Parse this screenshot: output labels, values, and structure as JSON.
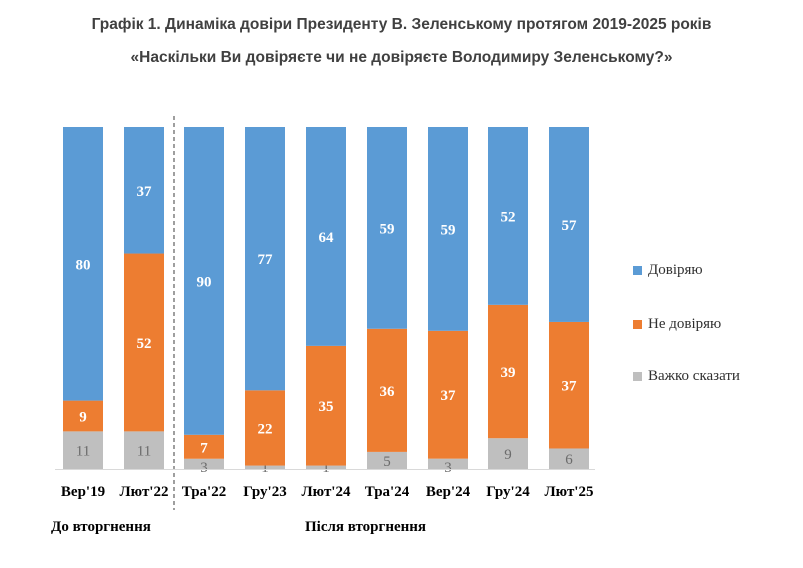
{
  "title_line1": "Графік 1. Динаміка довіри Президенту В. Зеленському протягом 2019-2025 років",
  "title_line2": "«Наскільки Ви довіряєте чи не довіряєте Володимиру Зеленському?»",
  "groups": {
    "before": "До вторгнення",
    "after": "Після вторгнення"
  },
  "colors": {
    "trust": "#5b9bd5",
    "distrust": "#ed7d31",
    "hard": "#bfbfbf"
  },
  "chart_data": {
    "type": "bar",
    "stacked": true,
    "percent_stacked": true,
    "categories": [
      "Вер'19",
      "Лют'22",
      "Тра'22",
      "Гру'23",
      "Лют'24",
      "Тра'24",
      "Вер'24",
      "Гру'24",
      "Лют'25"
    ],
    "series": [
      {
        "name": "Довіряю",
        "values": [
          80,
          37,
          90,
          77,
          64,
          59,
          59,
          52,
          57
        ]
      },
      {
        "name": "Не довіряю",
        "values": [
          9,
          52,
          7,
          22,
          35,
          36,
          37,
          39,
          37
        ]
      },
      {
        "name": "Важко сказати",
        "values": [
          11,
          11,
          3,
          1,
          1,
          5,
          3,
          9,
          6
        ]
      }
    ],
    "legend_position": "right",
    "grid": false,
    "divider_after_category": 1
  }
}
